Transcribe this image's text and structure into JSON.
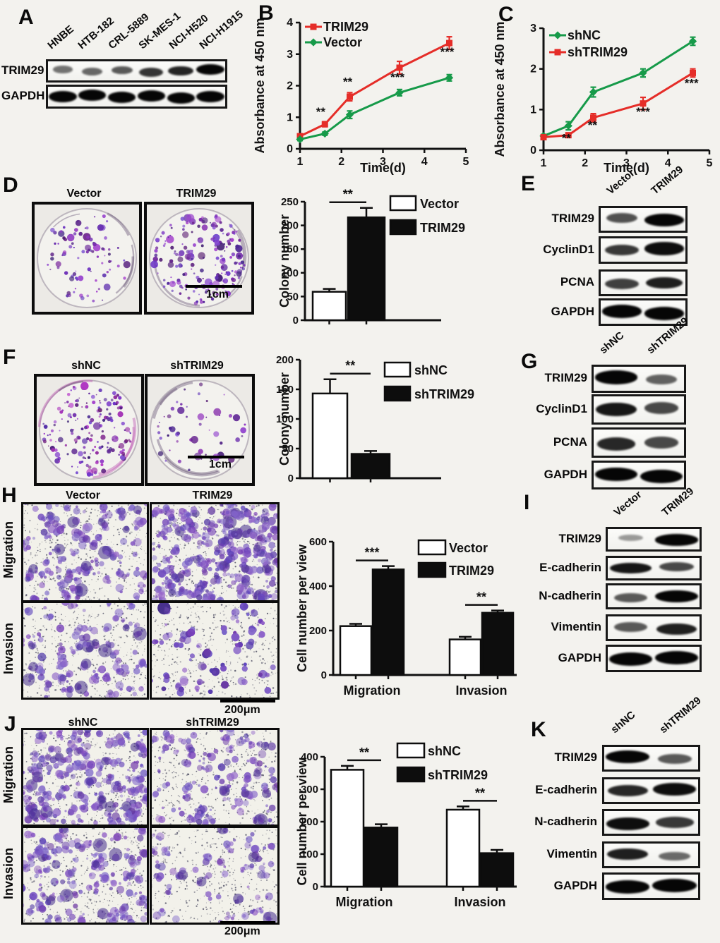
{
  "colors": {
    "red": "#e52d28",
    "green": "#169a49",
    "black": "#0a0a0a",
    "white_bar": "#ffffff",
    "dot_purple": "#5a2d9e",
    "bg": "#f3f2ee"
  },
  "panels": {
    "A": {
      "label": "A",
      "lanes": [
        "HNBE",
        "HTB-182",
        "CRL-5889",
        "SK-MES-1",
        "NCI-H520",
        "NCI-H1915"
      ],
      "rows": [
        {
          "name": "TRIM29",
          "intensities": [
            0.35,
            0.42,
            0.5,
            0.72,
            0.82,
            1.0
          ]
        },
        {
          "name": "GAPDH",
          "intensities": [
            1,
            1,
            1,
            1,
            1,
            1
          ]
        }
      ]
    },
    "B": {
      "label": "B"
    },
    "C": {
      "label": "C"
    },
    "D": {
      "label": "D",
      "image_titles": [
        "Vector",
        "TRIM29"
      ],
      "scale_bar": "1cm"
    },
    "E": {
      "label": "E",
      "lanes": [
        "Vector",
        "TRIM29"
      ],
      "rows": [
        {
          "name": "TRIM29",
          "intensities": [
            0.55,
            1.0
          ]
        },
        {
          "name": "CyclinD1",
          "intensities": [
            0.7,
            0.95
          ]
        },
        {
          "name": "PCNA",
          "intensities": [
            0.65,
            0.85
          ]
        },
        {
          "name": "GAPDH",
          "intensities": [
            1,
            1
          ]
        }
      ]
    },
    "F": {
      "label": "F",
      "image_titles": [
        "shNC",
        "shTRIM29"
      ],
      "scale_bar": "1cm"
    },
    "G": {
      "label": "G",
      "lanes": [
        "shNC",
        "shTRIM29"
      ],
      "rows": [
        {
          "name": "TRIM29",
          "intensities": [
            1.0,
            0.45
          ]
        },
        {
          "name": "CyclinD1",
          "intensities": [
            0.9,
            0.6
          ]
        },
        {
          "name": "PCNA",
          "intensities": [
            0.8,
            0.6
          ]
        },
        {
          "name": "GAPDH",
          "intensities": [
            1,
            1
          ]
        }
      ]
    },
    "H": {
      "label": "H",
      "col_titles": [
        "Vector",
        "TRIM29"
      ],
      "row_titles": [
        "Migration",
        "Invasion"
      ],
      "scale_bar": "200μm"
    },
    "I": {
      "label": "I",
      "lanes": [
        "Vector",
        "TRIM29"
      ],
      "rows": [
        {
          "name": "TRIM29",
          "intensities": [
            0.12,
            1.0
          ]
        },
        {
          "name": "E-cadherin",
          "intensities": [
            0.9,
            0.6
          ]
        },
        {
          "name": "N-cadherin",
          "intensities": [
            0.5,
            1.0
          ]
        },
        {
          "name": "Vimentin",
          "intensities": [
            0.5,
            0.85
          ]
        },
        {
          "name": "GAPDH",
          "intensities": [
            1,
            1
          ]
        }
      ]
    },
    "J": {
      "label": "J",
      "col_titles": [
        "shNC",
        "shTRIM29"
      ],
      "row_titles": [
        "Migration",
        "Invasion"
      ],
      "scale_bar": "200μm"
    },
    "K": {
      "label": "K",
      "lanes": [
        "shNC",
        "shTRIM29"
      ],
      "rows": [
        {
          "name": "TRIM29",
          "intensities": [
            1.0,
            0.5
          ]
        },
        {
          "name": "E-cadherin",
          "intensities": [
            0.8,
            0.95
          ]
        },
        {
          "name": "N-cadherin",
          "intensities": [
            0.95,
            0.7
          ]
        },
        {
          "name": "Vimentin",
          "intensities": [
            0.85,
            0.4
          ]
        },
        {
          "name": "GAPDH",
          "intensities": [
            1,
            1
          ]
        }
      ]
    }
  },
  "chart_data": [
    {
      "id": "B",
      "type": "line",
      "xlabel": "Time(d)",
      "ylabel": "Absorbance at 450 nm",
      "x": [
        1,
        1.6,
        2.2,
        3.4,
        4.6
      ],
      "xlim": [
        1,
        5
      ],
      "ylim": [
        0,
        4
      ],
      "xticks": [
        1,
        2,
        3,
        4,
        5
      ],
      "yticks": [
        0,
        1,
        2,
        3,
        4
      ],
      "series": [
        {
          "name": "TRIM29",
          "color": "red",
          "marker": "square",
          "values": [
            0.4,
            0.78,
            1.65,
            2.57,
            3.35
          ],
          "errors": [
            0.06,
            0.08,
            0.13,
            0.2,
            0.2
          ]
        },
        {
          "name": "Vector",
          "color": "green",
          "marker": "diamond",
          "values": [
            0.3,
            0.48,
            1.08,
            1.78,
            2.25
          ],
          "errors": [
            0.04,
            0.05,
            0.12,
            0.1,
            0.1
          ]
        }
      ],
      "annotations": [
        {
          "x": 1.5,
          "y": 1.05,
          "text": "**"
        },
        {
          "x": 2.15,
          "y": 2.0,
          "text": "**"
        },
        {
          "x": 3.35,
          "y": 2.15,
          "text": "***"
        },
        {
          "x": 4.55,
          "y": 2.95,
          "text": "***"
        }
      ]
    },
    {
      "id": "C",
      "type": "line",
      "xlabel": "Time(d)",
      "ylabel": "Absorbance at 450 nm",
      "x": [
        1,
        1.6,
        2.2,
        3.4,
        4.6
      ],
      "xlim": [
        1,
        5
      ],
      "ylim": [
        0,
        3
      ],
      "xticks": [
        1,
        2,
        3,
        4,
        5
      ],
      "yticks": [
        0,
        1,
        2,
        3
      ],
      "series": [
        {
          "name": "shNC",
          "color": "green",
          "marker": "diamond",
          "values": [
            0.35,
            0.6,
            1.43,
            1.9,
            2.68
          ],
          "errors": [
            0.04,
            0.1,
            0.12,
            0.1,
            0.1
          ]
        },
        {
          "name": "shTRIM29",
          "color": "red",
          "marker": "square",
          "values": [
            0.32,
            0.37,
            0.8,
            1.15,
            1.9
          ],
          "errors": [
            0.05,
            0.05,
            0.1,
            0.15,
            0.1
          ]
        }
      ],
      "annotations": [
        {
          "x": 1.55,
          "y": 0.2,
          "text": "**"
        },
        {
          "x": 2.18,
          "y": 0.52,
          "text": "**"
        },
        {
          "x": 3.4,
          "y": 0.85,
          "text": "***"
        },
        {
          "x": 4.57,
          "y": 1.55,
          "text": "***"
        }
      ]
    },
    {
      "id": "D",
      "type": "bar",
      "ylabel": "Colony number",
      "ylim": [
        0,
        250
      ],
      "yticks": [
        0,
        50,
        100,
        150,
        200,
        250
      ],
      "categories": [
        "Vector",
        "TRIM29"
      ],
      "values": [
        60,
        217
      ],
      "errors": [
        6,
        20
      ],
      "bar_fills": [
        "white",
        "black"
      ],
      "legend": [
        "Vector",
        "TRIM29"
      ],
      "sig": "**"
    },
    {
      "id": "F",
      "type": "bar",
      "ylabel": "Colony number",
      "ylim": [
        0,
        200
      ],
      "yticks": [
        0,
        50,
        100,
        150,
        200
      ],
      "categories": [
        "shNC",
        "shTRIM29"
      ],
      "values": [
        143,
        41
      ],
      "errors": [
        24,
        5
      ],
      "bar_fills": [
        "white",
        "black"
      ],
      "legend": [
        "shNC",
        "shTRIM29"
      ],
      "sig": "**"
    },
    {
      "id": "H",
      "type": "grouped-bar",
      "ylabel": "Cell number per view",
      "ylim": [
        0,
        600
      ],
      "yticks": [
        0,
        200,
        400,
        600
      ],
      "categories": [
        "Migration",
        "Invasion"
      ],
      "series": [
        {
          "name": "Vector",
          "fill": "white",
          "values": [
            220,
            160
          ],
          "errors": [
            10,
            12
          ]
        },
        {
          "name": "TRIM29",
          "fill": "black",
          "values": [
            475,
            280
          ],
          "errors": [
            15,
            10
          ]
        }
      ],
      "sig": [
        "***",
        "**"
      ]
    },
    {
      "id": "J",
      "type": "grouped-bar",
      "ylabel": "Cell number per view",
      "ylim": [
        0,
        400
      ],
      "yticks": [
        0,
        100,
        200,
        300,
        400
      ],
      "categories": [
        "Migration",
        "Invasion"
      ],
      "series": [
        {
          "name": "shNC",
          "fill": "white",
          "values": [
            360,
            237
          ],
          "errors": [
            12,
            10
          ]
        },
        {
          "name": "shTRIM29",
          "fill": "black",
          "values": [
            182,
            103
          ],
          "errors": [
            10,
            10
          ]
        }
      ],
      "sig": [
        "**",
        "**"
      ]
    }
  ]
}
